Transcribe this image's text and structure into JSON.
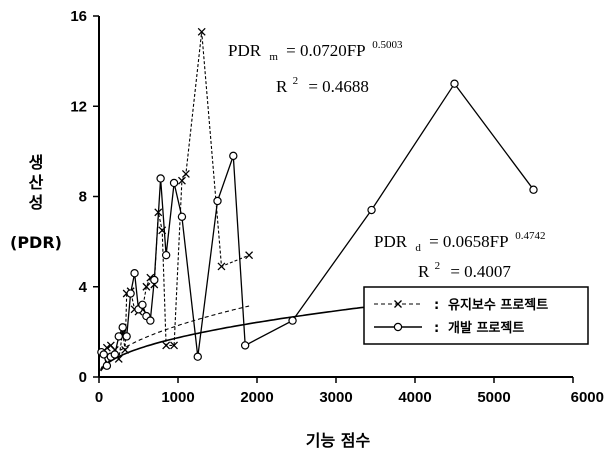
{
  "chart_data": {
    "type": "line",
    "xlabel": "기능 점수",
    "ylabel_lines": [
      "생",
      "산",
      "성"
    ],
    "ylabel_unit": "(PDR)",
    "xlim": [
      0,
      6000
    ],
    "ylim": [
      0,
      16
    ],
    "x_ticks": [
      "0",
      "1000",
      "2000",
      "3000",
      "4000",
      "5000",
      "6000"
    ],
    "y_ticks": [
      "0",
      "4",
      "8",
      "12",
      "16"
    ],
    "grid": false,
    "legend_position": "bottom-right",
    "series": [
      {
        "name": "유지보수 프로젝트",
        "marker": "x",
        "line_style": "dashed",
        "points": [
          [
            50,
            1.1
          ],
          [
            100,
            1.3
          ],
          [
            150,
            1.4
          ],
          [
            200,
            1.2
          ],
          [
            250,
            0.8
          ],
          [
            300,
            2.0
          ],
          [
            330,
            1.2
          ],
          [
            350,
            3.7
          ],
          [
            400,
            3.8
          ],
          [
            450,
            3.0
          ],
          [
            500,
            2.9
          ],
          [
            550,
            3.0
          ],
          [
            600,
            4.0
          ],
          [
            650,
            4.4
          ],
          [
            700,
            4.1
          ],
          [
            750,
            7.3
          ],
          [
            800,
            6.5
          ],
          [
            850,
            1.4
          ],
          [
            950,
            1.4
          ],
          [
            1050,
            8.7
          ],
          [
            1100,
            9.0
          ],
          [
            1300,
            15.3
          ],
          [
            1550,
            4.9
          ],
          [
            1900,
            5.4
          ]
        ]
      },
      {
        "name": "개발 프로젝트",
        "marker": "o",
        "line_style": "solid",
        "points": [
          [
            30,
            1.1
          ],
          [
            60,
            1.0
          ],
          [
            100,
            0.5
          ],
          [
            150,
            0.9
          ],
          [
            200,
            1.0
          ],
          [
            250,
            1.8
          ],
          [
            300,
            2.2
          ],
          [
            350,
            1.8
          ],
          [
            400,
            3.7
          ],
          [
            450,
            4.6
          ],
          [
            500,
            3.0
          ],
          [
            550,
            3.2
          ],
          [
            600,
            2.7
          ],
          [
            650,
            2.5
          ],
          [
            700,
            4.3
          ],
          [
            780,
            8.8
          ],
          [
            850,
            5.4
          ],
          [
            950,
            8.6
          ],
          [
            1050,
            7.1
          ],
          [
            1250,
            0.9
          ],
          [
            1500,
            7.8
          ],
          [
            1700,
            9.8
          ],
          [
            1850,
            1.4
          ],
          [
            2450,
            2.5
          ],
          [
            3450,
            7.4
          ],
          [
            4500,
            13.0
          ],
          [
            5500,
            8.3
          ]
        ]
      }
    ],
    "fits": [
      {
        "series": "유지보수 프로젝트",
        "line_style": "dashed",
        "coef": 0.072,
        "exp": 0.5003,
        "x_range": [
          20,
          1900
        ],
        "label_main": "PDR",
        "label_sub": "m",
        "label_rhs": "= 0.0720FP",
        "label_sup": "0.5003",
        "r2_label": "R",
        "r2_sup": "2",
        "r2_value": "= 0.4688"
      },
      {
        "series": "개발 프로젝트",
        "line_style": "solid",
        "coef": 0.0658,
        "exp": 0.4742,
        "x_range": [
          20,
          5500
        ],
        "label_main": "PDR",
        "label_sub": "d",
        "label_rhs": "= 0.0658FP",
        "label_sup": "0.4742",
        "r2_label": "R",
        "r2_sup": "2",
        "r2_value": "= 0.4007"
      }
    ],
    "legend_separator": ":"
  }
}
